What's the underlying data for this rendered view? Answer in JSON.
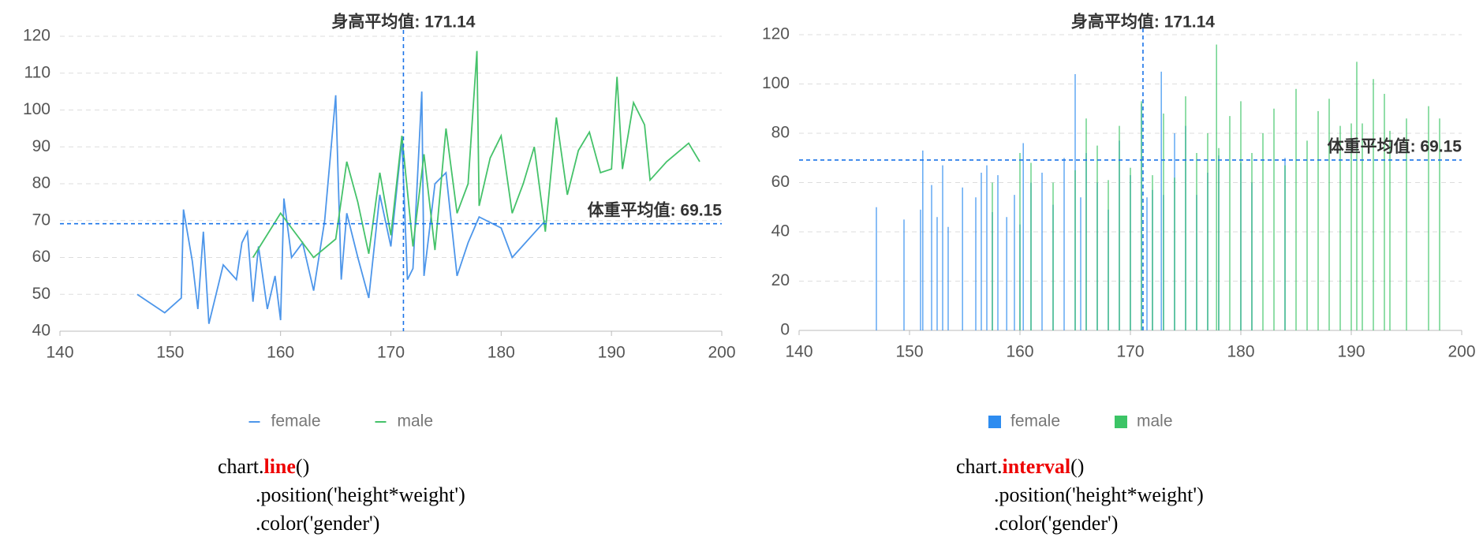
{
  "chart_data": [
    {
      "type": "line",
      "xlim": [
        140,
        200
      ],
      "xticks": [
        140,
        150,
        160,
        170,
        180,
        190,
        200
      ],
      "ylim": [
        40,
        120
      ],
      "yticks": [
        40,
        50,
        60,
        70,
        80,
        90,
        100,
        110,
        120
      ],
      "grid": true,
      "legend": "bottom",
      "series": [
        {
          "name": "female",
          "color": "#4d96ea",
          "x": [
            147,
            149.5,
            151,
            151.2,
            152,
            152.5,
            153,
            153.5,
            154.8,
            156,
            156.5,
            157,
            157.5,
            158,
            158.8,
            159.5,
            160,
            160.3,
            161,
            162,
            163,
            164,
            165,
            165.5,
            166,
            167,
            168,
            169,
            170,
            171,
            171.5,
            172,
            172.8,
            173,
            174,
            175,
            176,
            177,
            178,
            180,
            181,
            184
          ],
          "values": [
            50,
            45,
            49,
            73,
            59,
            46,
            67,
            42,
            58,
            54,
            64,
            67,
            48,
            63,
            46,
            55,
            43,
            76,
            60,
            64,
            51,
            70,
            104,
            54,
            72,
            60,
            49,
            77,
            63,
            92,
            54,
            57,
            105,
            55,
            80,
            83,
            55,
            64,
            71,
            68,
            60,
            70
          ]
        },
        {
          "name": "male",
          "color": "#45c26a",
          "x": [
            157.5,
            160,
            161,
            163,
            165,
            166,
            167,
            168,
            169,
            170,
            171,
            172,
            173,
            174,
            175,
            176,
            177,
            177.8,
            178,
            179,
            180,
            181,
            182,
            183,
            184,
            185,
            186,
            187,
            188,
            189,
            190,
            190.5,
            191,
            192,
            193,
            193.5,
            195,
            197,
            198
          ],
          "values": [
            60,
            72,
            68,
            60,
            65,
            86,
            75,
            61,
            83,
            66,
            93,
            63,
            88,
            62,
            95,
            72,
            80,
            116,
            74,
            87,
            93,
            72,
            80,
            90,
            67,
            98,
            77,
            89,
            94,
            83,
            84,
            109,
            84,
            102,
            96,
            81,
            86,
            91,
            86
          ]
        }
      ],
      "annotations": [
        {
          "text": "身高平均值: 171.14",
          "x": 171.14
        },
        {
          "text": "体重平均值: 69.15",
          "y": 69.15
        }
      ]
    },
    {
      "type": "interval",
      "xlim": [
        140,
        200
      ],
      "xticks": [
        140,
        150,
        160,
        170,
        180,
        190,
        200
      ],
      "ylim": [
        0,
        120
      ],
      "yticks": [
        0,
        20,
        40,
        60,
        80,
        100,
        120
      ],
      "grid": true,
      "legend": "bottom",
      "series": [
        {
          "name": "female",
          "color": "#2d8cf0",
          "x": [
            147,
            149.5,
            151,
            151.2,
            152,
            152.5,
            153,
            153.5,
            154.8,
            156,
            156.5,
            157,
            157.5,
            158,
            158.8,
            159.5,
            160,
            160.3,
            161,
            162,
            163,
            164,
            165,
            165.5,
            166,
            167,
            168,
            169,
            170,
            171,
            171.5,
            172,
            172.8,
            173,
            174,
            175,
            176,
            177,
            178,
            180,
            181,
            184
          ],
          "values": [
            50,
            45,
            49,
            73,
            59,
            46,
            67,
            42,
            58,
            54,
            64,
            67,
            48,
            63,
            46,
            55,
            43,
            76,
            60,
            64,
            51,
            70,
            104,
            54,
            72,
            60,
            49,
            77,
            63,
            92,
            54,
            57,
            105,
            55,
            80,
            83,
            55,
            64,
            71,
            68,
            60,
            70
          ]
        },
        {
          "name": "male",
          "color": "#3cc466",
          "x": [
            157.5,
            160,
            161,
            163,
            165,
            166,
            167,
            168,
            169,
            170,
            171,
            172,
            173,
            174,
            175,
            176,
            177,
            177.8,
            178,
            179,
            180,
            181,
            182,
            183,
            184,
            185,
            186,
            187,
            188,
            189,
            190,
            190.5,
            191,
            192,
            193,
            193.5,
            195,
            197,
            198
          ],
          "values": [
            60,
            72,
            68,
            60,
            65,
            86,
            75,
            61,
            83,
            66,
            93,
            63,
            88,
            62,
            95,
            72,
            80,
            116,
            74,
            87,
            93,
            72,
            80,
            90,
            67,
            98,
            77,
            89,
            94,
            83,
            84,
            109,
            84,
            102,
            96,
            81,
            86,
            91,
            86
          ]
        }
      ],
      "annotations": [
        {
          "text": "身高平均值: 171.14",
          "x": 171.14
        },
        {
          "text": "体重平均值: 69.15",
          "y": 69.15
        }
      ]
    }
  ],
  "captions": [
    {
      "prefix": "chart.",
      "method": "line",
      "suffix": "()",
      "lines": [
        ".position('height*weight')",
        ".color('gender')"
      ]
    },
    {
      "prefix": "chart.",
      "method": "interval",
      "suffix": "()",
      "lines": [
        ".position('height*weight')",
        ".color('gender')"
      ]
    }
  ]
}
